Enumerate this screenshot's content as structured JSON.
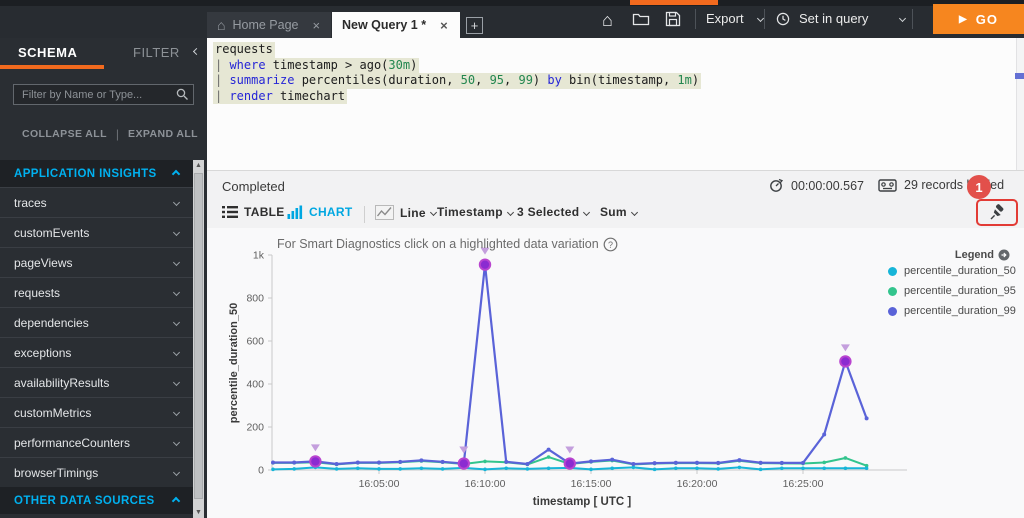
{
  "topbar": {
    "tabs": [
      {
        "label": "Home Page"
      },
      {
        "label": "New Query 1 *"
      }
    ],
    "new_tab_plus": "+",
    "export_label": "Export",
    "set_in_query_label": "Set in query",
    "go_label": "GO",
    "accent_orange": "#f26a1e"
  },
  "sidebar": {
    "tab_schema": "SCHEMA",
    "tab_filter": "FILTER",
    "search_placeholder": "Filter by Name or Type...",
    "collapse_all": "COLLAPSE ALL",
    "expand_all": "EXPAND ALL",
    "accent_cyan": "#00b1f0",
    "sections": [
      {
        "label": "APPLICATION INSIGHTS",
        "items": [
          "traces",
          "customEvents",
          "pageViews",
          "requests",
          "dependencies",
          "exceptions",
          "availabilityResults",
          "customMetrics",
          "performanceCounters",
          "browserTimings"
        ]
      },
      {
        "label": "OTHER DATA SOURCES",
        "items": []
      }
    ]
  },
  "editor": {
    "lines": [
      [
        [
          "plain",
          "requests"
        ]
      ],
      [
        [
          "pipe",
          "| "
        ],
        [
          "kw",
          "where"
        ],
        [
          "plain",
          " timestamp > ago("
        ],
        [
          "lit",
          "30m"
        ],
        [
          "plain",
          ")"
        ]
      ],
      [
        [
          "pipe",
          "| "
        ],
        [
          "kw",
          "summarize"
        ],
        [
          "plain",
          " percentiles(duration, "
        ],
        [
          "lit",
          "50"
        ],
        [
          "plain",
          ", "
        ],
        [
          "lit",
          "95"
        ],
        [
          "plain",
          ", "
        ],
        [
          "lit",
          "99"
        ],
        [
          "plain",
          ") "
        ],
        [
          "kw",
          "by"
        ],
        [
          "plain",
          " bin(timestamp, "
        ],
        [
          "lit",
          "1m"
        ],
        [
          "plain",
          ")"
        ]
      ],
      [
        [
          "pipe",
          "| "
        ],
        [
          "kw",
          "render"
        ],
        [
          "plain",
          " timechart"
        ]
      ]
    ]
  },
  "results": {
    "status": "Completed",
    "elapsed": "00:00:00.567",
    "records": "29 records loaded",
    "annotation_badge": "1",
    "view_table": "TABLE",
    "view_chart": "CHART",
    "chart_type": "Line",
    "x_field": "Timestamp",
    "series_selected": "3 Selected",
    "aggregation": "Sum"
  },
  "chart": {
    "title": "For Smart Diagnostics click on a highlighted data variation",
    "legend_title": "Legend"
  },
  "chart_data": {
    "type": "line",
    "title": "For Smart Diagnostics click on a highlighted data variation",
    "xlabel": "timestamp [ UTC ]",
    "ylabel": "percentile_duration_50",
    "ylim": [
      0,
      1000
    ],
    "grid": false,
    "legend_position": "top-right",
    "yticks": [
      {
        "v": 0,
        "label": "0"
      },
      {
        "v": 200,
        "label": "200"
      },
      {
        "v": 400,
        "label": "400"
      },
      {
        "v": 600,
        "label": "600"
      },
      {
        "v": 800,
        "label": "800"
      },
      {
        "v": 1000,
        "label": "1k"
      }
    ],
    "xticks": [
      {
        "minute": 5,
        "label": "16:05:00"
      },
      {
        "minute": 10,
        "label": "16:10:00"
      },
      {
        "minute": 15,
        "label": "16:15:00"
      },
      {
        "minute": 20,
        "label": "16:20:00"
      },
      {
        "minute": 25,
        "label": "16:25:00"
      }
    ],
    "x_times": [
      "16:00:00",
      "16:01:00",
      "16:02:00",
      "16:03:00",
      "16:04:00",
      "16:05:00",
      "16:06:00",
      "16:07:00",
      "16:08:00",
      "16:09:00",
      "16:10:00",
      "16:11:00",
      "16:12:00",
      "16:13:00",
      "16:14:00",
      "16:15:00",
      "16:16:00",
      "16:17:00",
      "16:18:00",
      "16:19:00",
      "16:20:00",
      "16:21:00",
      "16:22:00",
      "16:23:00",
      "16:24:00",
      "16:25:00",
      "16:26:00",
      "16:27:00",
      "16:28:00"
    ],
    "series": [
      {
        "name": "percentile_duration_50",
        "color": "#17b5d8",
        "values": [
          3,
          5,
          12,
          5,
          8,
          5,
          5,
          8,
          5,
          10,
          3,
          8,
          5,
          8,
          10,
          3,
          8,
          12,
          3,
          8,
          8,
          5,
          12,
          3,
          8,
          8,
          8,
          8,
          8
        ]
      },
      {
        "name": "percentile_duration_95",
        "color": "#33c48d",
        "values": [
          33,
          33,
          36,
          26,
          33,
          33,
          36,
          42,
          36,
          28,
          40,
          36,
          26,
          60,
          28,
          38,
          44,
          26,
          30,
          32,
          32,
          31,
          43,
          32,
          31,
          30,
          35,
          56,
          20
        ]
      },
      {
        "name": "percentile_duration_99",
        "color": "#5a63d8",
        "values": [
          35,
          35,
          40,
          28,
          35,
          35,
          38,
          45,
          38,
          30,
          955,
          38,
          28,
          95,
          30,
          40,
          48,
          28,
          32,
          34,
          34,
          33,
          46,
          34,
          33,
          33,
          165,
          505,
          240
        ]
      }
    ],
    "highlight_markers": [
      {
        "minute": 2,
        "value": 40
      },
      {
        "minute": 9,
        "value": 30
      },
      {
        "minute": 10,
        "value": 955
      },
      {
        "minute": 14,
        "value": 30
      },
      {
        "minute": 27,
        "value": 505
      }
    ],
    "marker_color": "#8b2bd1",
    "marker_ring": "#b944cf",
    "marker_arrow_color": "#c49fdd"
  }
}
